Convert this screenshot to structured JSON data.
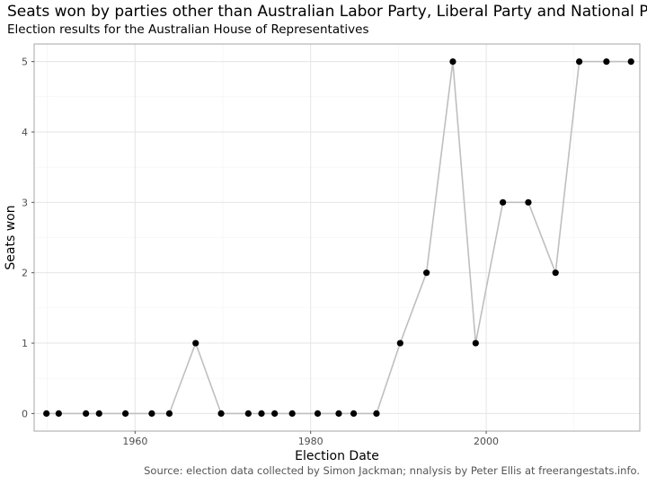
{
  "title": "Seats won by parties other than Australian Labor Party, Liberal Party and National Party",
  "subtitle": "Election results for the Australian House of Representatives",
  "caption": "Source: election data collected by Simon Jackman; nnalysis by Peter Ellis at freerangestats.info.",
  "colors": {
    "line": "#bfbfbf",
    "point": "#000000",
    "grid_major": "#e5e5e5",
    "grid_minor": "#f2f2f2",
    "panel_border": "#b3b3b3"
  },
  "chart_data": {
    "type": "line",
    "title": "Seats won by parties other than Australian Labor Party, Liberal Party and National Party",
    "subtitle": "Election results for the Australian House of Representatives",
    "xlabel": "Election Date",
    "ylabel": "Seats won",
    "x_ticks": [
      1960,
      1980,
      2000
    ],
    "y_ticks": [
      0,
      1,
      2,
      3,
      4,
      5
    ],
    "xlim": [
      1948.5,
      2017.5
    ],
    "ylim": [
      -0.25,
      5.25
    ],
    "grid": true,
    "markers": true,
    "x": [
      1949.9,
      1951.3,
      1954.4,
      1955.9,
      1958.9,
      1961.9,
      1963.9,
      1966.9,
      1969.8,
      1972.9,
      1974.4,
      1975.9,
      1977.9,
      1980.8,
      1983.2,
      1984.9,
      1987.5,
      1990.2,
      1993.2,
      1996.2,
      1998.8,
      2001.9,
      2004.8,
      2007.9,
      2010.6,
      2013.7,
      2016.5
    ],
    "y": [
      0,
      0,
      0,
      0,
      0,
      0,
      0,
      1,
      0,
      0,
      0,
      0,
      0,
      0,
      0,
      0,
      0,
      1,
      2,
      5,
      1,
      3,
      3,
      2,
      5,
      5,
      5
    ]
  }
}
